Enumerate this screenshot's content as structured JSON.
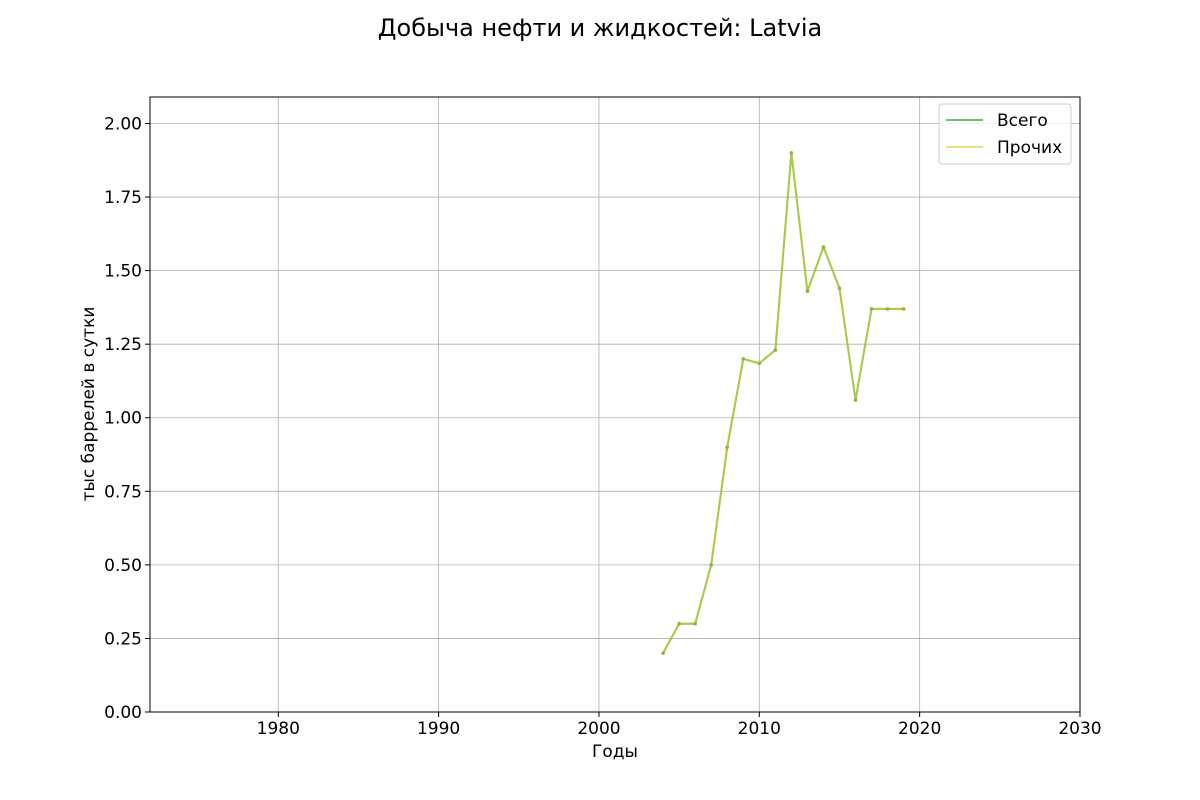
{
  "chart_data": {
    "type": "line",
    "title": "Добыча нефти и жидкостей: Latvia",
    "xlabel": "Годы",
    "ylabel": "тыс баррелей в сутки",
    "xlim": [
      1972,
      2030
    ],
    "ylim": [
      0,
      2.09
    ],
    "xticks": [
      1980,
      1990,
      2000,
      2010,
      2020,
      2030
    ],
    "xtick_labels": [
      "1980",
      "1990",
      "2000",
      "2010",
      "2020",
      "2030"
    ],
    "yticks": [
      0,
      0.25,
      0.5,
      0.75,
      1.0,
      1.25,
      1.5,
      1.75,
      2.0
    ],
    "ytick_labels": [
      "0.00",
      "0.25",
      "0.50",
      "0.75",
      "1.00",
      "1.25",
      "1.50",
      "1.75",
      "2.00"
    ],
    "grid": true,
    "legend_position": "top-right",
    "x": [
      2004,
      2005,
      2006,
      2007,
      2008,
      2009,
      2010,
      2011,
      2012,
      2013,
      2014,
      2015,
      2016,
      2017,
      2018,
      2019
    ],
    "series": [
      {
        "name": "Всего",
        "color": "#4daf4a",
        "values": [
          0.2,
          0.3,
          0.3,
          0.5,
          0.9,
          1.2,
          1.185,
          1.23,
          1.9,
          1.43,
          1.58,
          1.44,
          1.06,
          1.37,
          1.37,
          1.37
        ]
      },
      {
        "name": "Прочих",
        "color": "#d4d02a",
        "values": [
          0.2,
          0.3,
          0.3,
          0.5,
          0.9,
          1.2,
          1.185,
          1.23,
          1.9,
          1.43,
          1.58,
          1.44,
          1.06,
          1.37,
          1.37,
          1.37
        ]
      }
    ],
    "combined_color": "#8db53a"
  }
}
